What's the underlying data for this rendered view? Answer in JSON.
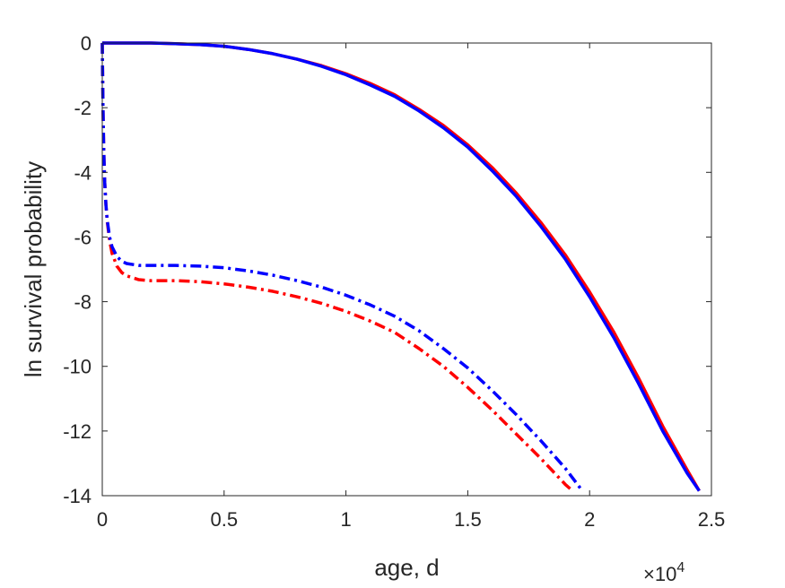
{
  "chart_data": {
    "type": "line",
    "title": "",
    "xlabel": "age, d",
    "ylabel": "ln survival probability",
    "x_exponent_label": {
      "base": "×10",
      "power": "4"
    },
    "xlim": [
      0,
      25000
    ],
    "ylim": [
      -14,
      0
    ],
    "x_ticks": [
      0,
      5000,
      10000,
      15000,
      20000,
      25000
    ],
    "x_tick_labels": [
      "0",
      "0.5",
      "1",
      "1.5",
      "2",
      "2.5"
    ],
    "y_ticks": [
      0,
      -2,
      -4,
      -6,
      -8,
      -10,
      -12,
      -14
    ],
    "y_tick_labels": [
      "0",
      "-2",
      "-4",
      "-6",
      "-8",
      "-10",
      "-12",
      "-14"
    ],
    "grid": false,
    "box": true,
    "series": [
      {
        "color": "#ff0000",
        "style": "solid",
        "x": [
          0,
          1000,
          2000,
          3000,
          4000,
          5000,
          6000,
          7000,
          8000,
          9000,
          10000,
          11000,
          12000,
          13000,
          14000,
          15000,
          16000,
          17000,
          18000,
          19000,
          20000,
          21000,
          22000,
          23000,
          24000,
          24500
        ],
        "y": [
          0,
          0,
          0,
          -0.02,
          -0.05,
          -0.1,
          -0.2,
          -0.33,
          -0.5,
          -0.7,
          -0.95,
          -1.25,
          -1.6,
          -2.05,
          -2.55,
          -3.15,
          -3.85,
          -4.65,
          -5.55,
          -6.55,
          -7.7,
          -8.95,
          -10.35,
          -11.85,
          -13.2,
          -13.85
        ]
      },
      {
        "color": "#0000ff",
        "style": "solid",
        "x": [
          0,
          1000,
          2000,
          3000,
          4000,
          5000,
          6000,
          7000,
          8000,
          9000,
          10000,
          11000,
          12000,
          13000,
          14000,
          15000,
          16000,
          17000,
          18000,
          19000,
          20000,
          21000,
          22000,
          23000,
          24000,
          24500
        ],
        "y": [
          0,
          0,
          0,
          -0.02,
          -0.05,
          -0.1,
          -0.2,
          -0.33,
          -0.5,
          -0.72,
          -0.98,
          -1.3,
          -1.65,
          -2.1,
          -2.62,
          -3.22,
          -3.95,
          -4.75,
          -5.67,
          -6.68,
          -7.85,
          -9.12,
          -10.52,
          -12.0,
          -13.3,
          -13.85
        ]
      },
      {
        "color": "#ff0000",
        "style": "dashdot",
        "x": [
          0,
          30,
          60,
          100,
          150,
          200,
          300,
          400,
          600,
          800,
          1000,
          1500,
          2000,
          3000,
          4000,
          5000,
          6000,
          7000,
          8000,
          9000,
          10000,
          11000,
          12000,
          13000,
          14000,
          15000,
          16000,
          17000,
          18000,
          19000,
          19300
        ],
        "y": [
          0,
          -2.0,
          -3.3,
          -4.3,
          -5.0,
          -5.5,
          -6.1,
          -6.5,
          -6.9,
          -7.1,
          -7.2,
          -7.32,
          -7.35,
          -7.35,
          -7.38,
          -7.45,
          -7.55,
          -7.68,
          -7.85,
          -8.05,
          -8.3,
          -8.6,
          -8.95,
          -9.45,
          -10.0,
          -10.65,
          -11.35,
          -12.1,
          -12.85,
          -13.65,
          -13.85
        ]
      },
      {
        "color": "#0000ff",
        "style": "dashdot",
        "x": [
          0,
          30,
          60,
          100,
          150,
          200,
          300,
          400,
          600,
          800,
          1000,
          1500,
          2000,
          3000,
          4000,
          5000,
          6000,
          7000,
          8000,
          9000,
          10000,
          11000,
          12000,
          13000,
          14000,
          15000,
          16000,
          17000,
          18000,
          19000,
          19700
        ],
        "y": [
          0,
          -2.0,
          -3.3,
          -4.3,
          -5.0,
          -5.45,
          -6.0,
          -6.3,
          -6.6,
          -6.75,
          -6.82,
          -6.88,
          -6.88,
          -6.88,
          -6.9,
          -6.95,
          -7.05,
          -7.18,
          -7.35,
          -7.55,
          -7.8,
          -8.1,
          -8.45,
          -8.9,
          -9.45,
          -10.05,
          -10.75,
          -11.5,
          -12.3,
          -13.15,
          -13.85
        ]
      }
    ]
  }
}
